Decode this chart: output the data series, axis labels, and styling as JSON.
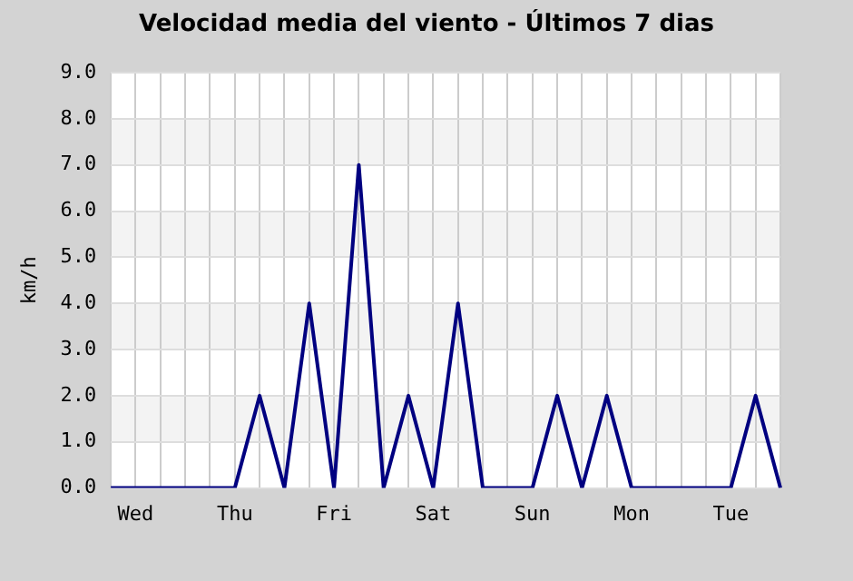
{
  "chart_data": {
    "type": "line",
    "title": "Velocidad media del viento - Últimos 7 dias",
    "ylabel": "km/h",
    "categories": [
      null,
      "Wed",
      null,
      null,
      null,
      "Thu",
      null,
      null,
      null,
      "Fri",
      null,
      null,
      null,
      "Sat",
      null,
      null,
      null,
      "Sun",
      null,
      null,
      null,
      "Mon",
      null,
      null,
      null,
      "Tue",
      null,
      null
    ],
    "series": [
      {
        "color": "#000080",
        "values": [
          0,
          0,
          0,
          0,
          0,
          0,
          2,
          0,
          4,
          0,
          7,
          0,
          2,
          0,
          4,
          0,
          0,
          0,
          2,
          0,
          2,
          0,
          0,
          0,
          0,
          0,
          2,
          0
        ]
      }
    ],
    "ylim": [
      0,
      9
    ],
    "yticks": [
      {
        "value": 0,
        "label": "0.0"
      },
      {
        "value": 1,
        "label": "1.0"
      },
      {
        "value": 2,
        "label": "2.0"
      },
      {
        "value": 3,
        "label": "3.0"
      },
      {
        "value": 4,
        "label": "4.0"
      },
      {
        "value": 5,
        "label": "5.0"
      },
      {
        "value": 6,
        "label": "6.0"
      },
      {
        "value": 7,
        "label": "7.0"
      },
      {
        "value": 8,
        "label": "8.0"
      },
      {
        "value": 9,
        "label": "9.0"
      }
    ],
    "bands": [
      {
        "axis": "y",
        "from": 1,
        "to": 2,
        "color": "#f3f3f3"
      },
      {
        "axis": "y",
        "from": 3,
        "to": 4,
        "color": "#f3f3f3"
      },
      {
        "axis": "y",
        "from": 5,
        "to": 6,
        "color": "#f3f3f3"
      },
      {
        "axis": "y",
        "from": 7,
        "to": 8,
        "color": "#f3f3f3"
      }
    ],
    "grid": true,
    "legend": false,
    "marker": "none",
    "line_style": "solid"
  }
}
